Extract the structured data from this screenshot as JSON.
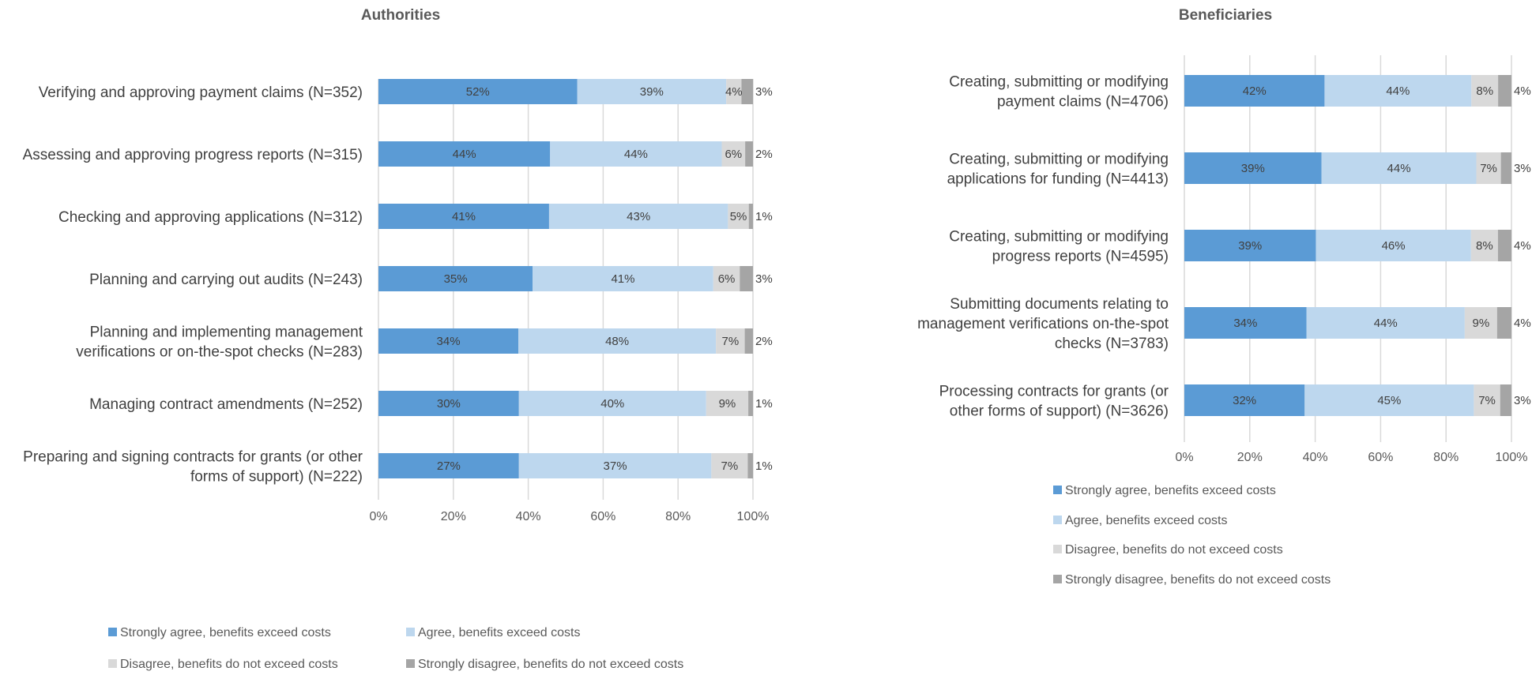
{
  "chart_data": [
    {
      "type": "bar",
      "orientation": "horizontal",
      "stacked": true,
      "title": "Authorities",
      "categories": [
        "Verifying and approving payment claims (N=352)",
        "Assessing and approving progress reports (N=315)",
        "Checking and approving applications (N=312)",
        "Planning and carrying out audits (N=243)",
        "Planning and implementing management verifications or on-the-spot checks (N=283)",
        "Managing contract amendments (N=252)",
        "Preparing and signing contracts for grants (or other forms of support) (N=222)"
      ],
      "category_lines": [
        [
          "Verifying and approving payment claims (N=352)"
        ],
        [
          "Assessing and approving progress reports (N=315)"
        ],
        [
          "Checking and approving applications (N=312)"
        ],
        [
          "Planning and carrying out audits (N=243)"
        ],
        [
          "Planning and implementing management",
          "verifications or on-the-spot checks (N=283)"
        ],
        [
          "Managing contract amendments (N=252)"
        ],
        [
          "Preparing and signing contracts for grants (or other",
          "forms of support) (N=222)"
        ]
      ],
      "series": [
        {
          "name": "Strongly agree, benefits exceed costs",
          "color": "#5b9bd5",
          "values": [
            52,
            44,
            41,
            35,
            34,
            30,
            27
          ],
          "labels": [
            "52%",
            "44%",
            "41%",
            "35%",
            "34%",
            "30%",
            "27%"
          ]
        },
        {
          "name": "Agree, benefits exceed costs",
          "color": "#bdd7ee",
          "values": [
            39,
            44,
            43,
            41,
            48,
            40,
            37
          ],
          "labels": [
            "39%",
            "44%",
            "43%",
            "41%",
            "48%",
            "40%",
            "37%"
          ]
        },
        {
          "name": "Disagree, benefits do not exceed costs",
          "color": "#d9d9d9",
          "values": [
            4,
            6,
            5,
            6,
            7,
            9,
            7
          ],
          "labels": [
            "4%",
            "6%",
            "5%",
            "6%",
            "7%",
            "9%",
            "7%"
          ]
        },
        {
          "name": "Strongly disagree, benefits do not exceed costs",
          "color": "#a5a5a5",
          "values": [
            3,
            2,
            1,
            3,
            2,
            1,
            1
          ],
          "labels": [
            "3%",
            "2%",
            "1%",
            "3%",
            "2%",
            "1%",
            "1%"
          ]
        }
      ],
      "xlim": [
        0,
        100
      ],
      "x_ticks": [
        "0%",
        "20%",
        "40%",
        "60%",
        "80%",
        "100%"
      ],
      "grid": true,
      "legend": "bottom"
    },
    {
      "type": "bar",
      "orientation": "horizontal",
      "stacked": true,
      "title": "Beneficiaries",
      "categories": [
        "Creating, submitting or modifying payment claims (N=4706)",
        "Creating, submitting or modifying applications for funding (N=4413)",
        "Creating, submitting or modifying progress reports (N=4595)",
        "Submitting documents relating to management verifications on-the-spot checks (N=3783)",
        "Processing contracts for grants (or other forms of support) (N=3626)"
      ],
      "category_lines": [
        [
          "Creating, submitting or modifying",
          "payment claims (N=4706)"
        ],
        [
          "Creating, submitting or modifying",
          "applications for funding (N=4413)"
        ],
        [
          "Creating, submitting or modifying",
          "progress reports (N=4595)"
        ],
        [
          "Submitting documents relating to",
          "management verifications on-the-spot",
          "checks (N=3783)"
        ],
        [
          "Processing contracts for grants (or",
          "other forms of support) (N=3626)"
        ]
      ],
      "series": [
        {
          "name": "Strongly agree, benefits exceed costs",
          "color": "#5b9bd5",
          "values": [
            42,
            39,
            39,
            34,
            32
          ],
          "labels": [
            "42%",
            "39%",
            "39%",
            "34%",
            "32%"
          ]
        },
        {
          "name": "Agree, benefits exceed costs",
          "color": "#bdd7ee",
          "values": [
            44,
            44,
            46,
            44,
            45
          ],
          "labels": [
            "44%",
            "44%",
            "46%",
            "44%",
            "45%"
          ]
        },
        {
          "name": "Disagree, benefits do not exceed costs",
          "color": "#d9d9d9",
          "values": [
            8,
            7,
            8,
            9,
            7
          ],
          "labels": [
            "8%",
            "7%",
            "8%",
            "9%",
            "7%"
          ]
        },
        {
          "name": "Strongly disagree, benefits do not exceed costs",
          "color": "#a5a5a5",
          "values": [
            4,
            3,
            4,
            4,
            3
          ],
          "labels": [
            "4%",
            "3%",
            "4%",
            "4%",
            "3%"
          ]
        }
      ],
      "xlim": [
        0,
        100
      ],
      "x_ticks": [
        "0%",
        "20%",
        "40%",
        "60%",
        "80%",
        "100%"
      ],
      "grid": true,
      "legend": "bottom"
    }
  ]
}
